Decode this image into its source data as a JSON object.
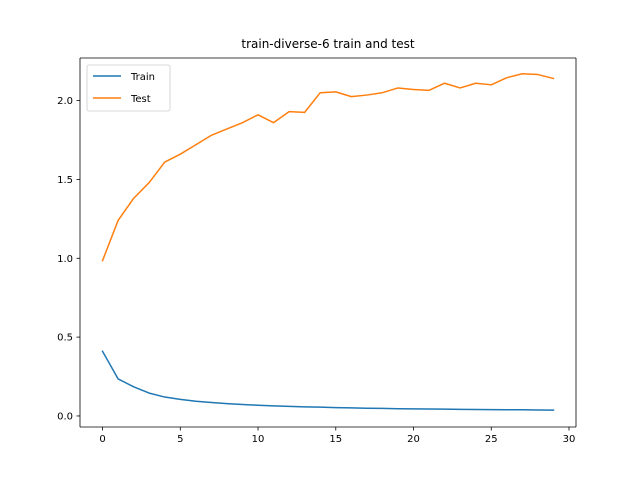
{
  "chart_data": {
    "type": "line",
    "title": "train-diverse-6 train and test",
    "xlabel": "",
    "ylabel": "",
    "xlim": [
      -1.45,
      30.45
    ],
    "ylim": [
      -0.07,
      2.27
    ],
    "x_ticks": [
      0,
      5,
      10,
      15,
      20,
      25,
      30
    ],
    "y_ticks": [
      0.0,
      0.5,
      1.0,
      1.5,
      2.0
    ],
    "x_tick_labels": [
      "0",
      "5",
      "10",
      "15",
      "20",
      "25",
      "30"
    ],
    "y_tick_labels": [
      "0.0",
      "0.5",
      "1.0",
      "1.5",
      "2.0"
    ],
    "grid": false,
    "legend_position": "upper-left",
    "x": [
      0,
      1,
      2,
      3,
      4,
      5,
      6,
      7,
      8,
      9,
      10,
      11,
      12,
      13,
      14,
      15,
      16,
      17,
      18,
      19,
      20,
      21,
      22,
      23,
      24,
      25,
      26,
      27,
      28,
      29
    ],
    "series": [
      {
        "name": "Train",
        "color": "#1f77b4",
        "values": [
          0.41,
          0.235,
          0.185,
          0.145,
          0.12,
          0.105,
          0.093,
          0.085,
          0.078,
          0.073,
          0.068,
          0.064,
          0.061,
          0.058,
          0.056,
          0.053,
          0.051,
          0.049,
          0.048,
          0.046,
          0.045,
          0.044,
          0.043,
          0.042,
          0.041,
          0.04,
          0.039,
          0.039,
          0.038,
          0.037
        ]
      },
      {
        "name": "Test",
        "color": "#ff7f0e",
        "values": [
          0.985,
          1.24,
          1.38,
          1.48,
          1.61,
          1.66,
          1.72,
          1.78,
          1.82,
          1.86,
          1.91,
          1.86,
          1.93,
          1.925,
          2.05,
          2.055,
          2.025,
          2.035,
          2.05,
          2.08,
          2.07,
          2.065,
          2.11,
          2.08,
          2.11,
          2.1,
          2.145,
          2.17,
          2.165,
          2.14
        ]
      }
    ]
  }
}
